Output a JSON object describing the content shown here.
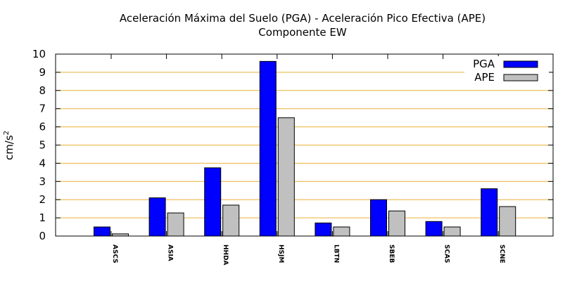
{
  "chart_data": {
    "type": "bar",
    "title": "Aceleración Máxima del Suelo (PGA) -  Aceleración Pico Efectiva (APE)",
    "subtitle": "Componente EW",
    "ylabel_base": "cm/s",
    "ylabel_exp": "2",
    "xlabel": "",
    "ylim": [
      0,
      10
    ],
    "yticks": [
      "0",
      "1",
      "2",
      "3",
      "4",
      "5",
      "6",
      "7",
      "8",
      "9",
      "10"
    ],
    "grid": true,
    "legend_position": "top-right",
    "categories": [
      "ASCS",
      "ASIA",
      "HHDA",
      "HSJM",
      "LBTN",
      "SBEB",
      "SCAS",
      "SCNE"
    ],
    "series": [
      {
        "name": "PGA",
        "color": "#0000ff",
        "values": [
          0.5,
          2.1,
          3.75,
          9.6,
          0.72,
          2.0,
          0.8,
          2.6
        ]
      },
      {
        "name": "APE",
        "color": "#c0c0c0",
        "values": [
          0.12,
          1.27,
          1.7,
          6.5,
          0.5,
          1.38,
          0.5,
          1.62
        ]
      }
    ]
  },
  "colors": {
    "grid": "#e8b23a",
    "axis": "#000000"
  }
}
